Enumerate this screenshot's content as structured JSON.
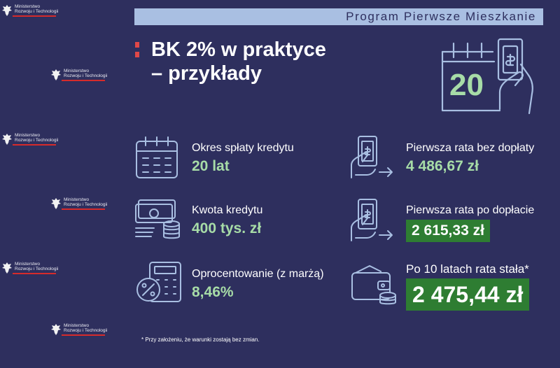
{
  "watermark": {
    "line1": "Ministerstwo",
    "line2": "Rozwoju i Technologii"
  },
  "banner": "Program Pierwsze Mieszkanie",
  "title": {
    "line1": "BK 2% w praktyce",
    "line2": "– przykłady"
  },
  "hero_icon_number": "20",
  "items": [
    {
      "label": "Okres spłaty kredytu",
      "value": "20 lat",
      "icon": "calendar-icon"
    },
    {
      "label": "Kwota kredytu",
      "value": "400 tys. zł",
      "icon": "money-coins-icon"
    },
    {
      "label": "Oprocentowanie (z marżą)",
      "value": "8,46%",
      "icon": "calculator-percent-icon"
    },
    {
      "label": "Pierwsza rata bez dopłaty",
      "value": "4 486,67 zł",
      "icon": "hand-banknote-icon"
    },
    {
      "label": "Pierwsza rata po dopłacie",
      "value": "2 615,33 zł",
      "icon": "hand-banknote-icon"
    },
    {
      "label": "Po 10 latach rata stała*",
      "value": "2 475,44 zł",
      "icon": "wallet-coins-icon"
    }
  ],
  "footnote": "* Przy założeniu, że warunki zostają bez zmian.",
  "colors": {
    "background": "#2e2f5e",
    "banner": "#a9bfe2",
    "accent_green_text": "#a7dca7",
    "badge_green": "#2e7d32",
    "title_mark_red": "#e04848"
  }
}
